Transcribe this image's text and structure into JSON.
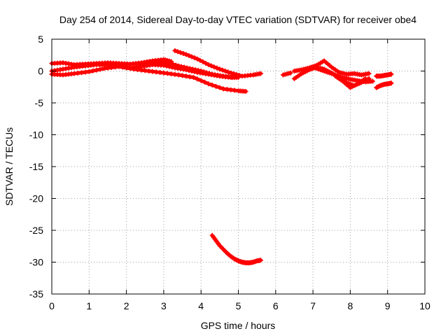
{
  "chart_data": {
    "type": "scatter",
    "title": "Day 254 of 2014, Sidereal Day-to-day VTEC variation (SDTVAR) for receiver obe4",
    "xlabel": "GPS time / hours",
    "ylabel": "SDTVAR / TECUs",
    "xlim": [
      0,
      10
    ],
    "ylim": [
      -35,
      5
    ],
    "x_ticks": [
      "0",
      "1",
      "2",
      "3",
      "4",
      "5",
      "6",
      "7",
      "8",
      "9",
      "10"
    ],
    "y_ticks": [
      "5",
      "0",
      "-5",
      "-10",
      "-15",
      "-20",
      "-25",
      "-30",
      "-35"
    ],
    "grid": true,
    "marker": "plus",
    "color": "#ff0000",
    "series": [
      {
        "x": [
          0.0,
          0.3,
          0.6,
          0.9,
          1.2,
          1.5,
          1.8,
          2.1,
          2.4,
          2.7,
          3.0,
          3.2
        ],
        "y": [
          1.2,
          1.3,
          1.0,
          1.1,
          1.2,
          1.3,
          1.2,
          1.1,
          1.3,
          1.6,
          1.8,
          1.5
        ]
      },
      {
        "x": [
          0.0,
          0.3,
          0.6,
          0.9,
          1.2,
          1.5,
          1.8,
          2.1,
          2.4,
          2.7,
          3.0,
          3.3,
          3.6,
          3.9,
          4.2,
          4.5,
          4.8,
          5.0
        ],
        "y": [
          0.0,
          0.3,
          0.6,
          0.8,
          1.0,
          1.0,
          0.8,
          0.5,
          0.7,
          1.0,
          0.9,
          0.5,
          0.2,
          -0.2,
          -0.5,
          -0.8,
          -1.0,
          -1.0
        ]
      },
      {
        "x": [
          0.0,
          0.3,
          0.6,
          1.0,
          1.4,
          1.8,
          2.2,
          2.6,
          3.0,
          3.4,
          3.8,
          4.2,
          4.6,
          5.0,
          5.2
        ],
        "y": [
          -0.5,
          -0.6,
          -0.4,
          -0.1,
          0.4,
          0.7,
          0.3,
          0.0,
          -0.3,
          -0.6,
          -1.0,
          -2.0,
          -2.8,
          -3.1,
          -3.2
        ]
      },
      {
        "x": [
          3.3,
          3.6,
          3.9,
          4.2,
          4.5,
          4.8,
          5.1,
          5.4,
          5.6
        ],
        "y": [
          3.2,
          2.6,
          1.9,
          1.0,
          0.3,
          -0.3,
          -0.8,
          -0.6,
          -0.4
        ]
      },
      {
        "x": [
          2.2,
          2.5,
          2.8,
          3.1,
          3.4,
          3.7,
          4.0,
          4.3,
          4.6,
          4.9
        ],
        "y": [
          0.5,
          1.0,
          1.4,
          1.3,
          0.8,
          0.4,
          0.0,
          -0.5,
          -0.8,
          -1.0
        ]
      },
      {
        "x": [
          4.3,
          4.4,
          4.5,
          4.6,
          4.7,
          4.8,
          4.9,
          5.0,
          5.1,
          5.2,
          5.3,
          5.4,
          5.5,
          5.6
        ],
        "y": [
          -25.8,
          -26.6,
          -27.4,
          -28.0,
          -28.6,
          -29.1,
          -29.5,
          -29.8,
          -30.0,
          -30.1,
          -30.1,
          -30.0,
          -29.8,
          -29.7
        ]
      },
      {
        "x": [
          6.2,
          6.4
        ],
        "y": [
          -0.6,
          -0.3
        ]
      },
      {
        "x": [
          6.5,
          6.7,
          6.9,
          7.1,
          7.3,
          7.5,
          7.7,
          7.9,
          8.1,
          8.3,
          8.5
        ],
        "y": [
          -1.2,
          -0.4,
          0.2,
          0.6,
          0.3,
          -0.3,
          -1.0,
          -1.8,
          -2.3,
          -1.8,
          -1.2
        ]
      },
      {
        "x": [
          6.5,
          6.7,
          6.9,
          7.1,
          7.3,
          7.5,
          7.7,
          7.9,
          8.1,
          8.3,
          8.5
        ],
        "y": [
          0.0,
          0.2,
          0.5,
          0.9,
          1.6,
          0.6,
          -0.2,
          -0.5,
          -0.4,
          -0.6,
          -0.4
        ]
      },
      {
        "x": [
          7.0,
          7.2,
          7.4,
          7.6,
          7.8,
          8.0,
          8.2,
          8.4,
          8.6
        ],
        "y": [
          0.6,
          0.2,
          -0.2,
          -0.6,
          -1.0,
          -1.3,
          -1.5,
          -1.7,
          -1.6
        ]
      },
      {
        "x": [
          7.6,
          7.8,
          8.0,
          8.2,
          8.4
        ],
        "y": [
          -0.8,
          -1.6,
          -2.6,
          -2.0,
          -1.2
        ]
      },
      {
        "x": [
          8.7,
          8.8,
          8.9,
          9.0,
          9.1
        ],
        "y": [
          -0.8,
          -0.8,
          -0.7,
          -0.6,
          -0.5
        ]
      },
      {
        "x": [
          8.7,
          8.8,
          8.9,
          9.0,
          9.1
        ],
        "y": [
          -2.6,
          -2.3,
          -2.1,
          -2.0,
          -1.9
        ]
      }
    ]
  }
}
